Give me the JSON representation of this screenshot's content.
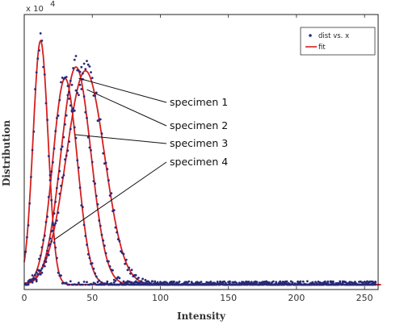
{
  "chart_data": {
    "type": "scatter",
    "xlabel": "Intensity",
    "ylabel": "Distribution",
    "y_multiplier": "x 10",
    "y_multiplier_exponent": "4",
    "xlim": [
      0,
      260
    ],
    "ylim": [
      0,
      7.2
    ],
    "x_ticks": [
      0,
      50,
      100,
      150,
      200,
      250
    ],
    "x_tick_labels": [
      "0",
      "50",
      "100",
      "150",
      "200",
      "250"
    ],
    "grid": false,
    "legend": {
      "placement": "top-right",
      "entries": [
        {
          "label": "dist vs. x",
          "marker": "point",
          "color": "#2a2a7a"
        },
        {
          "label": "fit",
          "marker": "line",
          "color": "#d42020"
        }
      ]
    },
    "series": [
      {
        "peak_x": 12,
        "peak_y": 6.5,
        "sigma": 5.5,
        "fit_color": "#d42020",
        "point_color": "#2a2a7a"
      },
      {
        "peak_x": 30,
        "peak_y": 5.5,
        "sigma": 9.0,
        "fit_color": "#d42020",
        "point_color": "#2a2a7a"
      },
      {
        "peak_x": 38,
        "peak_y": 5.8,
        "sigma": 11.0,
        "fit_color": "#d42020",
        "point_color": "#2a2a7a"
      },
      {
        "peak_x": 45,
        "peak_y": 5.7,
        "sigma": 14.0,
        "fit_color": "#d42020",
        "point_color": "#2a2a7a"
      }
    ],
    "annotations": [
      {
        "text": "specimen 1",
        "target_x": 40,
        "target_y": 5.5
      },
      {
        "text": "specimen 2",
        "target_x": 46,
        "target_y": 5.2
      },
      {
        "text": "specimen 3",
        "target_x": 37,
        "target_y": 4.0
      },
      {
        "text": "specimen 4",
        "target_x": 22,
        "target_y": 1.2
      }
    ]
  }
}
